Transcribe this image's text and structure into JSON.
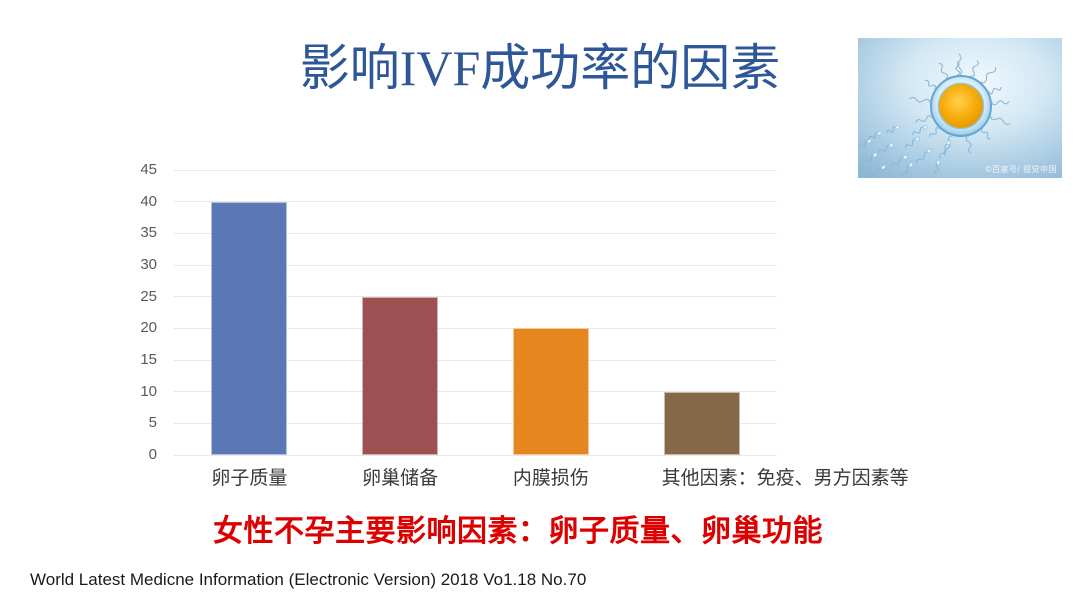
{
  "slide": {
    "title": "影响IVF成功率的因素",
    "title_color": "#2E5797",
    "annotation": "女性不孕主要影响因素：卵子质量、卵巢功能",
    "annotation_color": "#DD0000",
    "footer": "World Latest Medicne Information (Electronic Version) 2018 Vo1.18 No.70",
    "photo_watermark": "©百家号/ 视觉中国"
  },
  "chart_data": {
    "type": "bar",
    "categories": [
      "卵子质量",
      "卵巢储备",
      "内膜损伤",
      "其他因素：免疫、男方因素等"
    ],
    "values": [
      40,
      25,
      20,
      10
    ],
    "bar_colors": [
      "#5B78B4",
      "#9E5152",
      "#E5861F",
      "#846848"
    ],
    "title": "",
    "xlabel": "",
    "ylabel": "",
    "ylim": [
      0,
      45
    ],
    "ytick_step": 5,
    "grid": true,
    "gridline_color": "#E9E9E9",
    "tick_label_color": "#595959",
    "category_label_color": "#3A3A3A",
    "label_align": [
      "center",
      "center",
      "center",
      "left"
    ],
    "legend": false
  }
}
